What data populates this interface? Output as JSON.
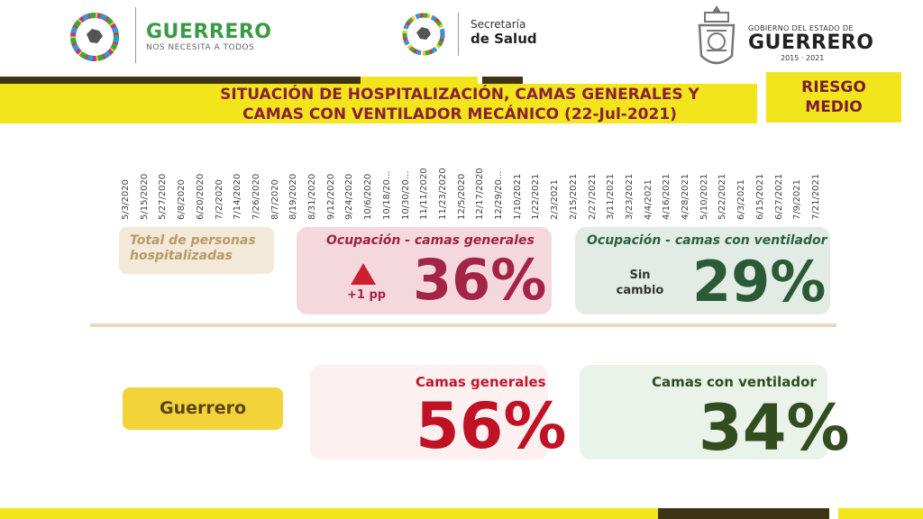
{
  "header": {
    "left_brand": {
      "title": "GUERRERO",
      "subtitle": "NOS NECESITA A TODOS"
    },
    "center_brand": {
      "top": "Secretaría",
      "bottom": "de Salud"
    },
    "right_brand": {
      "top": "GOBIERNO DEL ESTADO DE",
      "middle": "GUERRERO",
      "bottom": "2015 · 2021"
    }
  },
  "title": {
    "line1": "SITUACIÓN DE HOSPITALIZACIÓN, CAMAS GENERALES Y",
    "line2": "CAMAS CON VENTILADOR MECÁNICO (22-Jul-2021)"
  },
  "risk": {
    "line1": "RIESGO",
    "line2": "MEDIO"
  },
  "timeline_dates": [
    "5/3/2020",
    "5/15/2020",
    "5/27/2020",
    "6/8/2020",
    "6/20/2020",
    "7/2/2020",
    "7/14/2020",
    "7/26/2020",
    "8/7/2020",
    "8/19/2020",
    "8/31/2020",
    "9/12/2020",
    "9/24/2020",
    "10/6/2020",
    "10/18/20...",
    "10/30/20...",
    "11/11/2020",
    "11/23/2020",
    "12/5/2020",
    "12/17/2020",
    "12/29/20...",
    "1/10/2021",
    "1/22/2021",
    "2/3/2021",
    "2/15/2021",
    "2/27/2021",
    "3/11/2021",
    "3/23/2021",
    "4/4/2021",
    "4/16/2021",
    "4/28/2021",
    "5/10/2021",
    "5/22/2021",
    "6/3/2021",
    "6/15/2021",
    "6/27/2021",
    "7/9/2021",
    "7/21/2021"
  ],
  "summary": {
    "hospitalized_label_line1": "Total de personas",
    "hospitalized_label_line2": "hospitalizadas",
    "general_occupancy": {
      "label": "Ocupación - camas generales",
      "value": "36%",
      "change": "+1 pp"
    },
    "ventilator_occupancy": {
      "label": "Ocupación - camas con ventilador",
      "value": "29%",
      "change_line1": "Sin",
      "change_line2": "cambio"
    }
  },
  "state": {
    "name": "Guerrero",
    "general_beds": {
      "label": "Camas generales",
      "value": "56%"
    },
    "ventilator_beds": {
      "label": "Camas con ventilador",
      "value": "34%"
    }
  },
  "colors": {
    "yellow": "#f2e51b",
    "dark": "#3d3416",
    "red": "#a32447",
    "green": "#2a5a36"
  }
}
